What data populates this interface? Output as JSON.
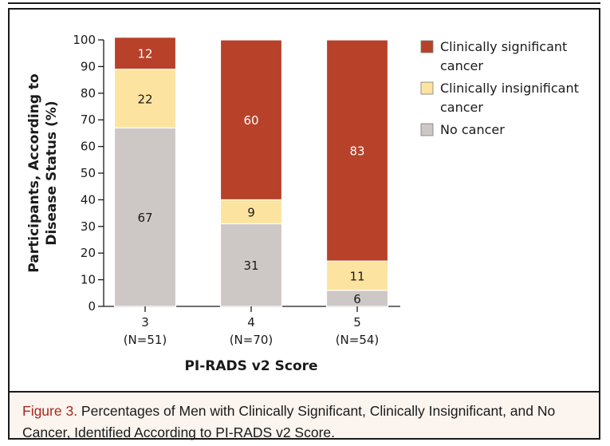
{
  "chart_data": {
    "type": "bar",
    "stacked": true,
    "categories": [
      "3",
      "4",
      "5"
    ],
    "category_sublabels": [
      "(N=51)",
      "(N=70)",
      "(N=54)"
    ],
    "series": [
      {
        "name": "No cancer",
        "values": [
          67,
          31,
          6
        ],
        "color": "#cdc8c5"
      },
      {
        "name": "Clinically insignificant cancer",
        "values": [
          22,
          9,
          11
        ],
        "color": "#fce4a0"
      },
      {
        "name": "Clinically significant cancer",
        "values": [
          12,
          60,
          83
        ],
        "color": "#b8412a"
      }
    ],
    "legend": [
      {
        "line1": "Clinically significant",
        "line2": "cancer",
        "color": "#b8412a"
      },
      {
        "line1": "Clinically insignificant",
        "line2": "cancer",
        "color": "#fce4a0"
      },
      {
        "line1": "No cancer",
        "line2": "",
        "color": "#cdc8c5"
      }
    ],
    "legend_position": "right",
    "xlabel": "PI-RADS v2 Score",
    "ylabel_line1": "Participants, According to",
    "ylabel_line2": "Disease Status (%)",
    "ylim": [
      0,
      100
    ],
    "yticks": [
      0,
      10,
      20,
      30,
      40,
      50,
      60,
      70,
      80,
      90,
      100
    ],
    "grid": false
  },
  "caption": {
    "label": "Figure 3.",
    "text": " Percentages of Men with Clinically Significant, Clinically Insignificant, and No Cancer, Identified According to PI-RADS v2 Score."
  }
}
